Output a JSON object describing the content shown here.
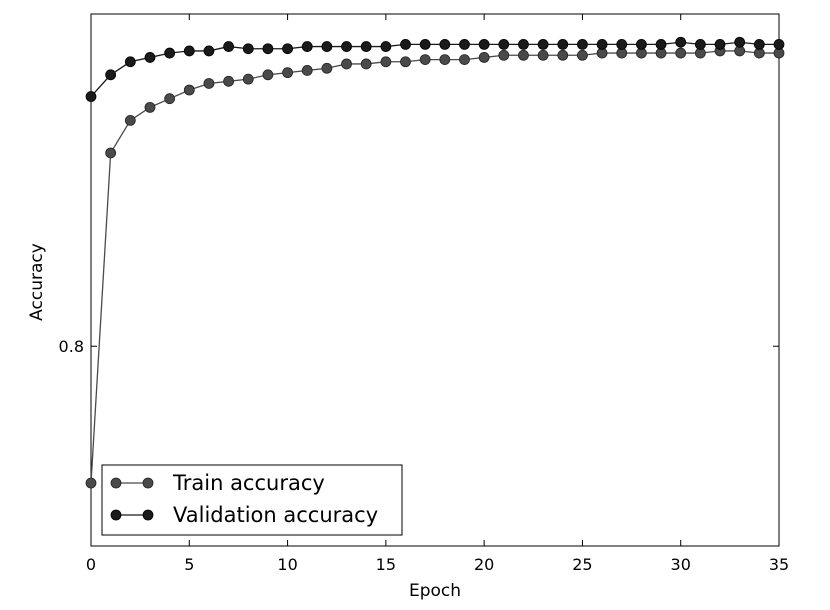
{
  "chart_data": {
    "type": "line",
    "title": "",
    "xlabel": "Epoch",
    "ylabel": "Accuracy",
    "xlim": [
      0,
      35
    ],
    "ylim": [
      0.708,
      0.953
    ],
    "x_ticks": [
      0,
      5,
      10,
      15,
      20,
      25,
      30,
      35
    ],
    "x_tick_labels": [
      "0",
      "5",
      "10",
      "15",
      "20",
      "25",
      "30",
      "35"
    ],
    "y_ticks": [
      0.8
    ],
    "y_tick_labels": [
      "0.8"
    ],
    "grid": false,
    "legend_position": "lower-left",
    "x": [
      0,
      1,
      2,
      3,
      4,
      5,
      6,
      7,
      8,
      9,
      10,
      11,
      12,
      13,
      14,
      15,
      16,
      17,
      18,
      19,
      20,
      21,
      22,
      23,
      24,
      25,
      26,
      27,
      28,
      29,
      30,
      31,
      32,
      33,
      34,
      35
    ],
    "series": [
      {
        "name": "Train accuracy",
        "color": "#4a4a4a",
        "values": [
          0.737,
          0.889,
          0.904,
          0.91,
          0.914,
          0.918,
          0.921,
          0.922,
          0.923,
          0.925,
          0.926,
          0.927,
          0.928,
          0.93,
          0.93,
          0.931,
          0.931,
          0.932,
          0.932,
          0.932,
          0.933,
          0.934,
          0.934,
          0.934,
          0.934,
          0.934,
          0.935,
          0.935,
          0.935,
          0.935,
          0.935,
          0.935,
          0.936,
          0.936,
          0.935,
          0.935
        ]
      },
      {
        "name": "Validation accuracy",
        "color": "#1a1a1a",
        "values": [
          0.915,
          0.925,
          0.931,
          0.933,
          0.935,
          0.936,
          0.936,
          0.938,
          0.937,
          0.937,
          0.937,
          0.938,
          0.938,
          0.938,
          0.938,
          0.938,
          0.939,
          0.939,
          0.939,
          0.939,
          0.939,
          0.939,
          0.939,
          0.939,
          0.939,
          0.939,
          0.939,
          0.939,
          0.939,
          0.939,
          0.94,
          0.939,
          0.939,
          0.94,
          0.939,
          0.939
        ]
      }
    ]
  }
}
